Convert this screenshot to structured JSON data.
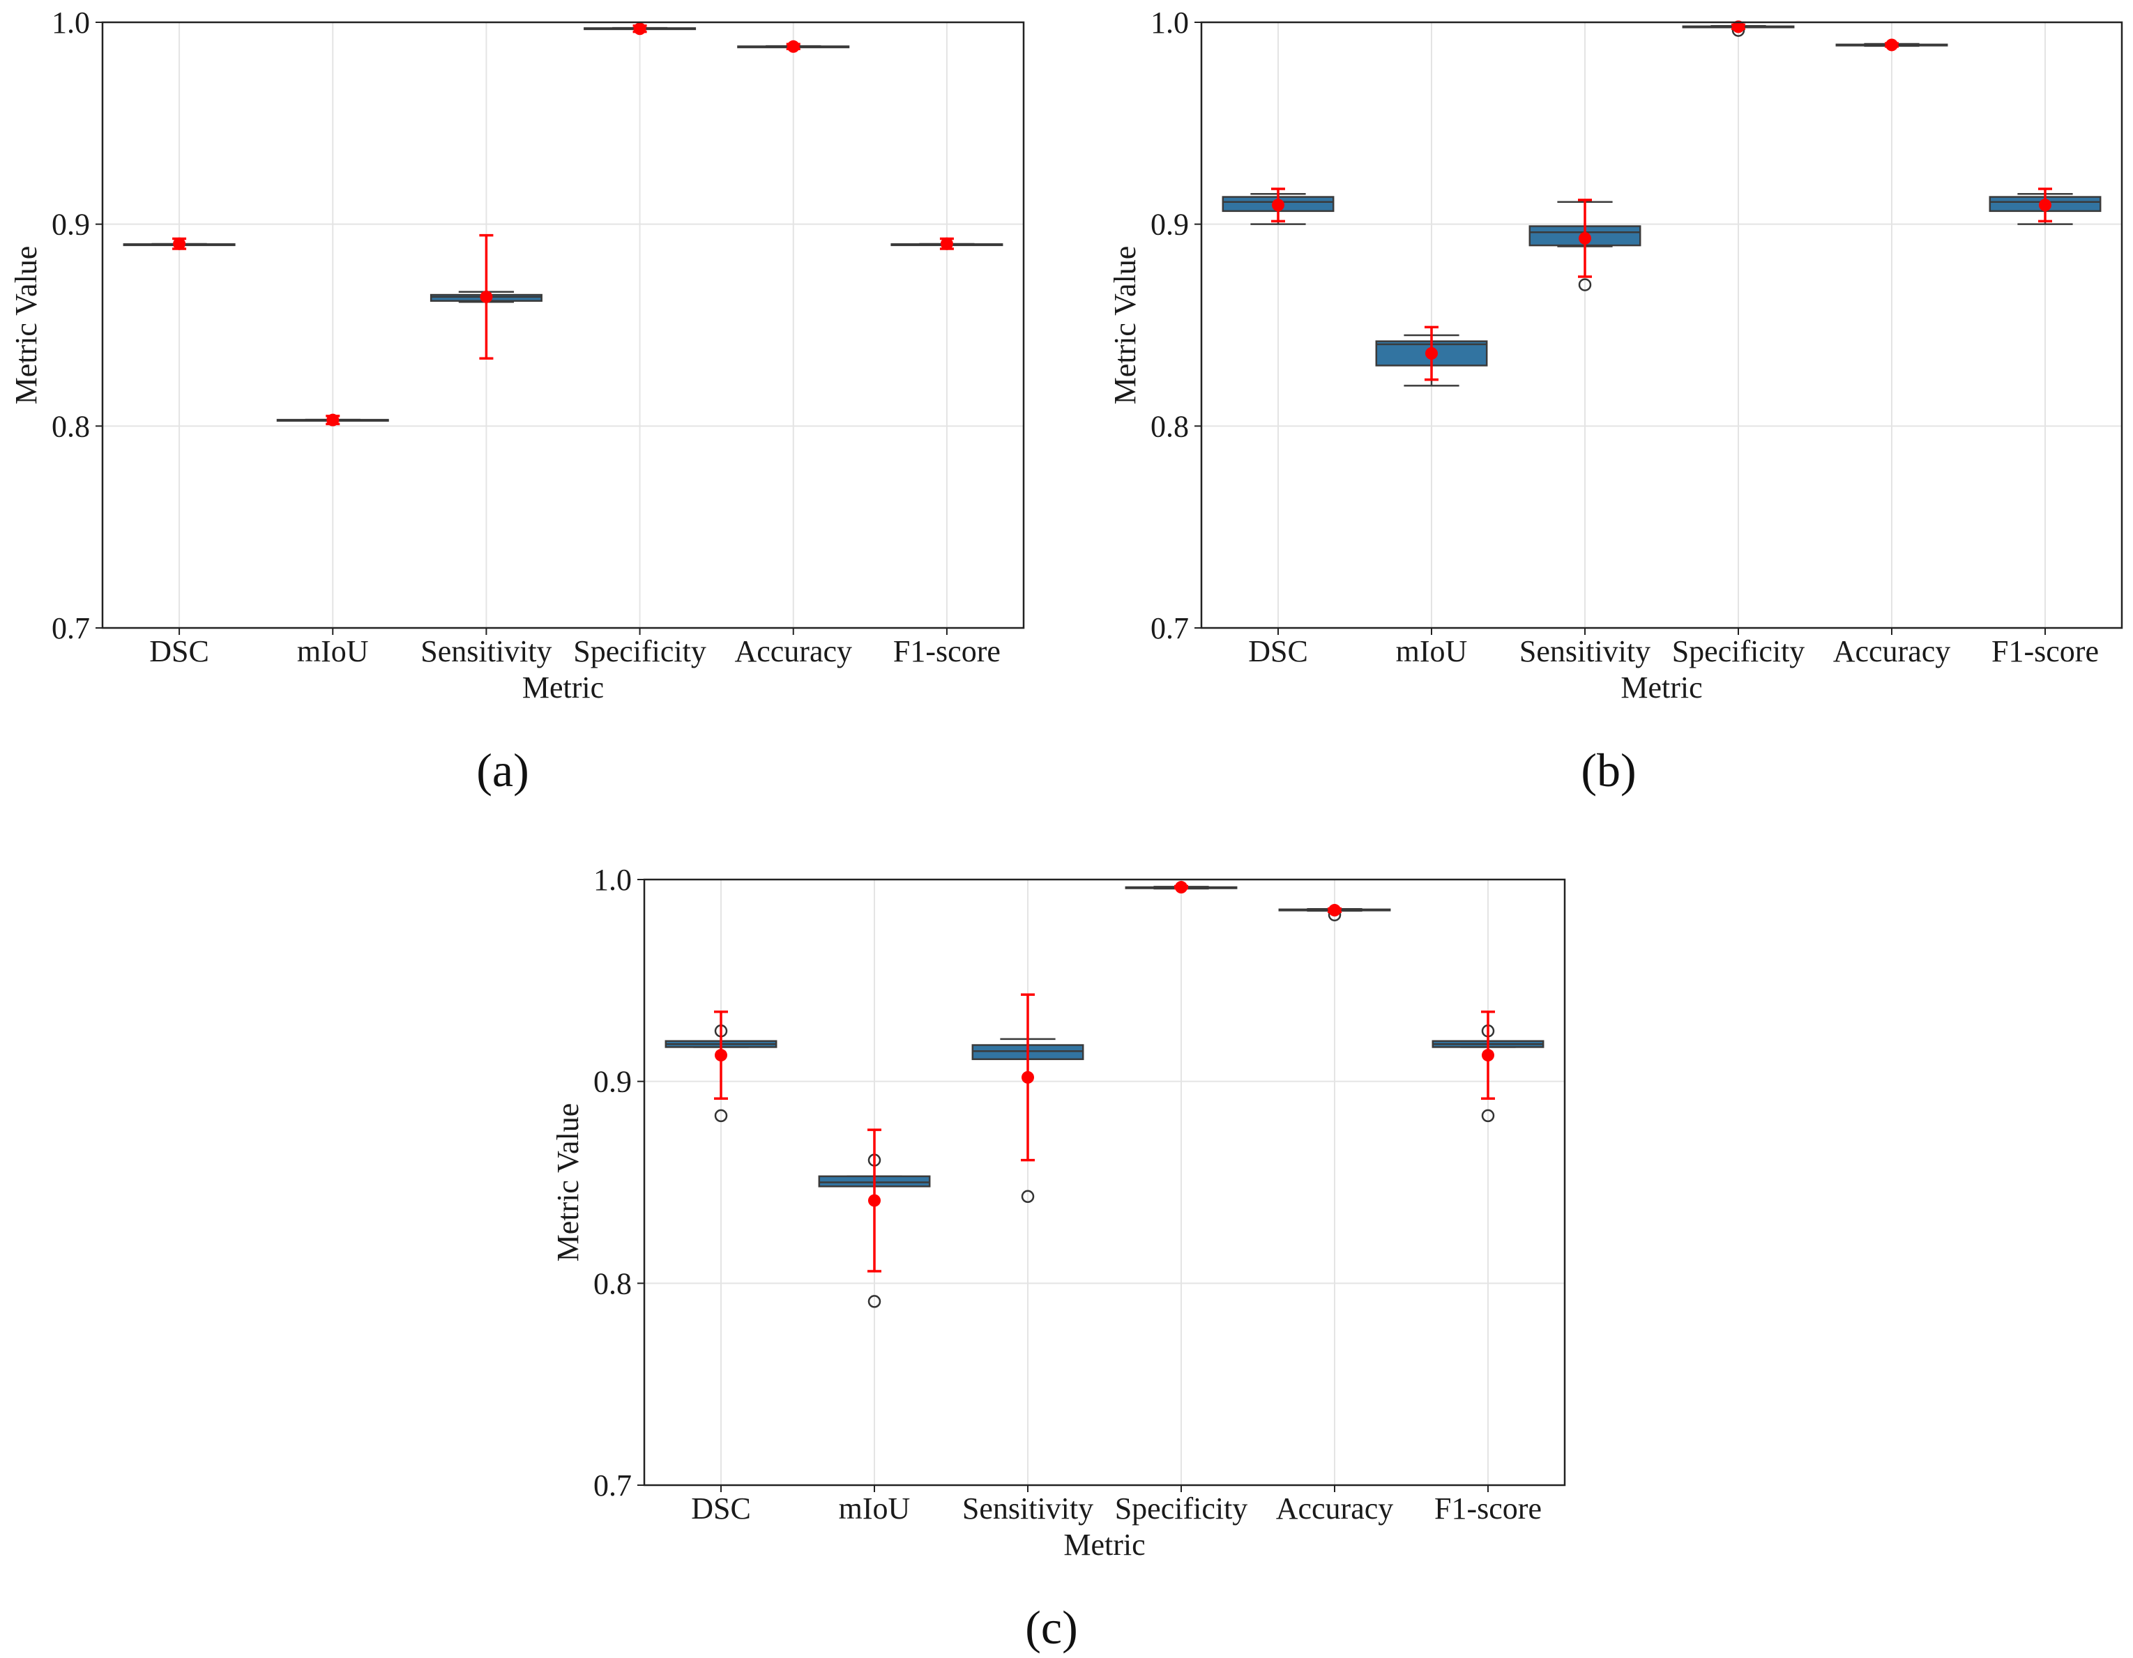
{
  "colors": {
    "box_fill": "#3274a1",
    "box_edge": "#3a3a3a",
    "mean_marker": "#ff0000",
    "grid": "#e4e4e4",
    "outlier_edge": "#333333"
  },
  "chart_data": [
    {
      "type": "box",
      "panel_label": "(a)",
      "xlabel": "Metric",
      "ylabel": "Metric Value",
      "ylim": [
        0.7,
        1.0
      ],
      "yticks": [
        "0.7",
        "0.8",
        "0.9",
        "1.0"
      ],
      "grid": true,
      "categories": [
        "DSC",
        "mIoU",
        "Sensitivity",
        "Specificity",
        "Accuracy",
        "F1-score"
      ],
      "boxes": [
        {
          "category": "DSC",
          "whisker_low": 0.8898,
          "q1": 0.8899,
          "median": 0.89,
          "q3": 0.8901,
          "whisker_high": 0.8902,
          "outliers": [],
          "mean": 0.8903,
          "std": 0.0025
        },
        {
          "category": "mIoU",
          "whisker_low": 0.8028,
          "q1": 0.8029,
          "median": 0.803,
          "q3": 0.8031,
          "whisker_high": 0.8032,
          "outliers": [],
          "mean": 0.803,
          "std": 0.002
        },
        {
          "category": "Sensitivity",
          "whisker_low": 0.8615,
          "q1": 0.862,
          "median": 0.864,
          "q3": 0.865,
          "whisker_high": 0.8665,
          "outliers": [],
          "mean": 0.864,
          "std": 0.0305
        },
        {
          "category": "Specificity",
          "whisker_low": 0.9968,
          "q1": 0.9969,
          "median": 0.997,
          "q3": 0.9971,
          "whisker_high": 0.9972,
          "outliers": [],
          "mean": 0.9968,
          "std": 0.0015
        },
        {
          "category": "Accuracy",
          "whisker_low": 0.9878,
          "q1": 0.9879,
          "median": 0.988,
          "q3": 0.9881,
          "whisker_high": 0.9882,
          "outliers": [],
          "mean": 0.988,
          "std": 0.0012
        },
        {
          "category": "F1-score",
          "whisker_low": 0.8898,
          "q1": 0.8899,
          "median": 0.89,
          "q3": 0.8901,
          "whisker_high": 0.8902,
          "outliers": [],
          "mean": 0.8903,
          "std": 0.0025
        }
      ]
    },
    {
      "type": "box",
      "panel_label": "(b)",
      "xlabel": "Metric",
      "ylabel": "Metric Value",
      "ylim": [
        0.7,
        1.0
      ],
      "yticks": [
        "0.7",
        "0.8",
        "0.9",
        "1.0"
      ],
      "grid": true,
      "categories": [
        "DSC",
        "mIoU",
        "Sensitivity",
        "Specificity",
        "Accuracy",
        "F1-score"
      ],
      "boxes": [
        {
          "category": "DSC",
          "whisker_low": 0.9,
          "q1": 0.9065,
          "median": 0.911,
          "q3": 0.9135,
          "whisker_high": 0.915,
          "outliers": [],
          "mean": 0.9095,
          "std": 0.008
        },
        {
          "category": "mIoU",
          "whisker_low": 0.82,
          "q1": 0.83,
          "median": 0.8405,
          "q3": 0.842,
          "whisker_high": 0.845,
          "outliers": [],
          "mean": 0.836,
          "std": 0.013
        },
        {
          "category": "Sensitivity",
          "whisker_low": 0.889,
          "q1": 0.8895,
          "median": 0.896,
          "q3": 0.899,
          "whisker_high": 0.911,
          "outliers": [
            0.87
          ],
          "mean": 0.893,
          "std": 0.019
        },
        {
          "category": "Specificity",
          "whisker_low": 0.9975,
          "q1": 0.9976,
          "median": 0.9978,
          "q3": 0.998,
          "whisker_high": 0.9982,
          "outliers": [
            0.996
          ],
          "mean": 0.9978,
          "std": 0.001
        },
        {
          "category": "Accuracy",
          "whisker_low": 0.9883,
          "q1": 0.9885,
          "median": 0.9888,
          "q3": 0.989,
          "whisker_high": 0.9893,
          "outliers": [],
          "mean": 0.9888,
          "std": 0.0008
        },
        {
          "category": "F1-score",
          "whisker_low": 0.9,
          "q1": 0.9065,
          "median": 0.911,
          "q3": 0.9135,
          "whisker_high": 0.915,
          "outliers": [],
          "mean": 0.9095,
          "std": 0.008
        }
      ]
    },
    {
      "type": "box",
      "panel_label": "(c)",
      "xlabel": "Metric",
      "ylabel": "Metric Value",
      "ylim": [
        0.7,
        1.0
      ],
      "yticks": [
        "0.7",
        "0.8",
        "0.9",
        "1.0"
      ],
      "grid": true,
      "categories": [
        "DSC",
        "mIoU",
        "Sensitivity",
        "Specificity",
        "Accuracy",
        "F1-score"
      ],
      "boxes": [
        {
          "category": "DSC",
          "whisker_low": 0.917,
          "q1": 0.917,
          "median": 0.9185,
          "q3": 0.92,
          "whisker_high": 0.92,
          "outliers": [
            0.883,
            0.925
          ],
          "mean": 0.913,
          "std": 0.0215
        },
        {
          "category": "mIoU",
          "whisker_low": 0.848,
          "q1": 0.848,
          "median": 0.85,
          "q3": 0.853,
          "whisker_high": 0.853,
          "outliers": [
            0.791,
            0.861
          ],
          "mean": 0.841,
          "std": 0.035
        },
        {
          "category": "Sensitivity",
          "whisker_low": 0.911,
          "q1": 0.911,
          "median": 0.915,
          "q3": 0.918,
          "whisker_high": 0.921,
          "outliers": [
            0.843
          ],
          "mean": 0.902,
          "std": 0.041
        },
        {
          "category": "Specificity",
          "whisker_low": 0.9955,
          "q1": 0.9957,
          "median": 0.996,
          "q3": 0.9962,
          "whisker_high": 0.9964,
          "outliers": [],
          "mean": 0.9962,
          "std": 0.0005
        },
        {
          "category": "Accuracy",
          "whisker_low": 0.9845,
          "q1": 0.9847,
          "median": 0.985,
          "q3": 0.9852,
          "whisker_high": 0.9854,
          "outliers": [
            0.9825
          ],
          "mean": 0.9848,
          "std": 0.0008
        },
        {
          "category": "F1-score",
          "whisker_low": 0.917,
          "q1": 0.917,
          "median": 0.9185,
          "q3": 0.92,
          "whisker_high": 0.92,
          "outliers": [
            0.883,
            0.925
          ],
          "mean": 0.913,
          "std": 0.0215
        }
      ]
    }
  ]
}
